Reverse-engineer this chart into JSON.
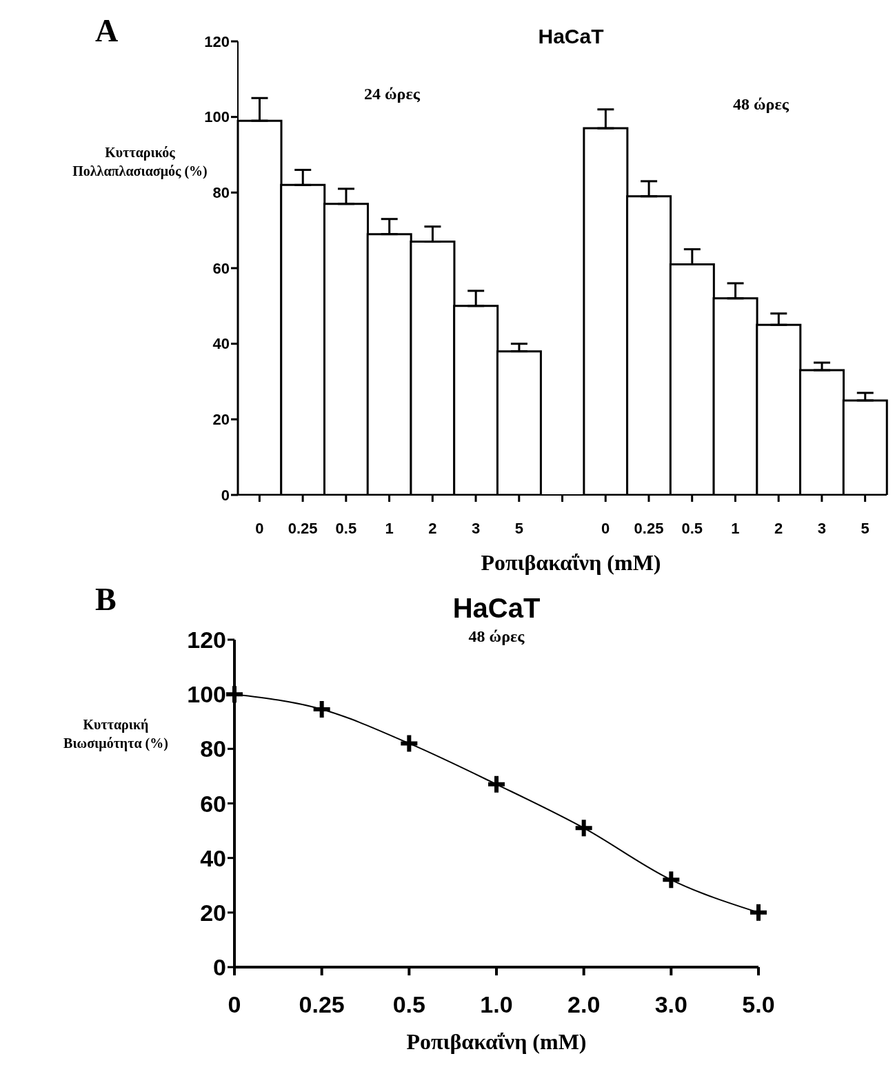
{
  "chart_data": [
    {
      "type": "bar",
      "title": "HaCaT",
      "xlabel": "Ροπιβακαΐνη (mM)",
      "ylabel": "Κυτταρικός Πολλαπλασιασμός (%)",
      "annotations": [
        "A",
        "24 ώρες",
        "48 ώρες"
      ],
      "categories": [
        "0",
        "0.25",
        "0.5",
        "1",
        "2",
        "3",
        "5",
        null,
        "0",
        "0.25",
        "0.5",
        "1",
        "2",
        "3",
        "5"
      ],
      "series": [
        {
          "color": "#ffffff",
          "values": [
            99,
            82,
            77,
            69,
            67,
            50,
            38,
            null,
            97,
            79,
            61,
            52,
            45,
            33,
            25
          ],
          "errors": [
            [
              99,
              105
            ],
            [
              82,
              86
            ],
            [
              77,
              81
            ],
            [
              69,
              73
            ],
            [
              67,
              71
            ],
            [
              50,
              54
            ],
            [
              38,
              40
            ],
            null,
            [
              97,
              102
            ],
            [
              79,
              83
            ],
            [
              61,
              65
            ],
            [
              52,
              56
            ],
            [
              45,
              48
            ],
            [
              33,
              35
            ],
            [
              25,
              27
            ]
          ]
        }
      ],
      "ylim": [
        0,
        120
      ],
      "yticks": [
        0,
        20,
        40,
        60,
        80,
        100,
        120
      ],
      "grid": false
    },
    {
      "type": "line",
      "title": "HaCaT",
      "subtitle": "48 ώρες",
      "xlabel": "Ροπιβακαΐνη (mM)",
      "ylabel": "Κυτταρική Βιωσιμότητα (%)",
      "annotations": [
        "B"
      ],
      "categories": [
        "0",
        "0.25",
        "0.5",
        "1.0",
        "2.0",
        "3.0",
        "5.0"
      ],
      "series": [
        {
          "color": "#000000",
          "values": [
            100,
            94.5,
            82,
            67,
            51,
            32,
            20
          ]
        }
      ],
      "ylim": [
        0,
        120
      ],
      "yticks": [
        0,
        20,
        40,
        60,
        80,
        100,
        120
      ],
      "grid": false,
      "marker": "cross",
      "line_style": "solid"
    }
  ]
}
